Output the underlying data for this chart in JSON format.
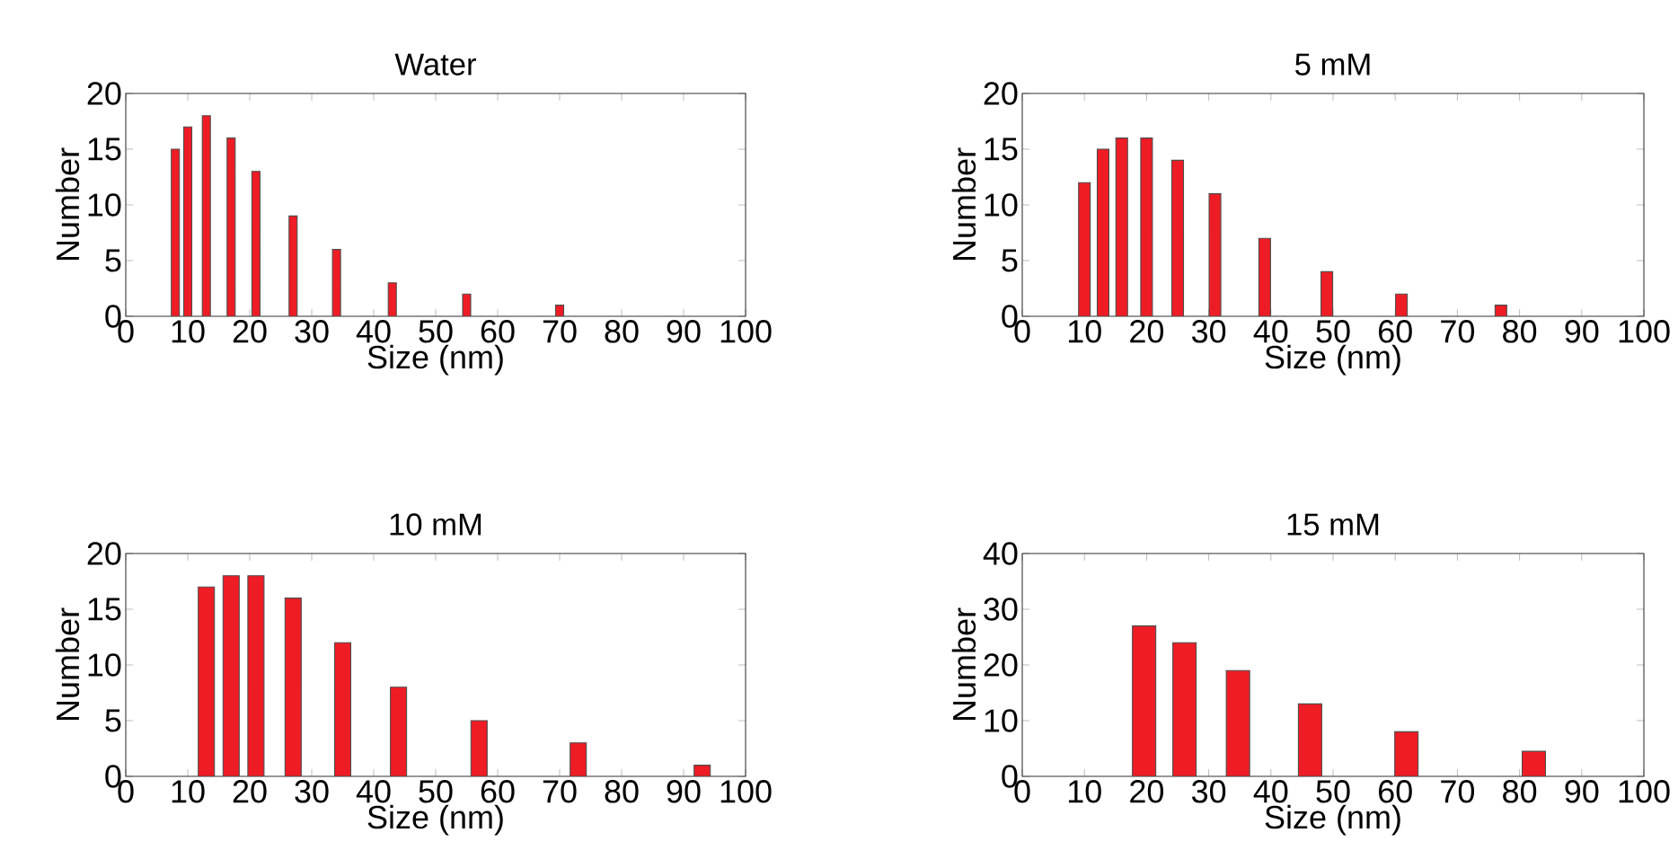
{
  "chart_data": [
    {
      "type": "bar",
      "title": "Water",
      "xlabel": "Size (nm)",
      "ylabel": "Number",
      "color": "#ee1c25",
      "x": [
        8,
        10,
        13,
        17,
        21,
        27,
        34,
        43,
        55,
        70
      ],
      "values": [
        15,
        17,
        18,
        16,
        13,
        9,
        6,
        3,
        2,
        1
      ],
      "xlim": [
        0,
        100
      ],
      "ylim": [
        0,
        20
      ],
      "xticks": [
        0,
        10,
        20,
        30,
        40,
        50,
        60,
        70,
        80,
        90,
        100
      ],
      "yticks": [
        0,
        5,
        10,
        15,
        20
      ],
      "grid": false
    },
    {
      "type": "bar",
      "title": "5 mM",
      "xlabel": "Size (nm)",
      "ylabel": "Number",
      "color": "#ee1c25",
      "x": [
        10,
        13,
        16,
        20,
        25,
        31,
        39,
        49,
        61,
        77
      ],
      "values": [
        12,
        15,
        16,
        16,
        14,
        11,
        7,
        4,
        2,
        1
      ],
      "xlim": [
        0,
        100
      ],
      "ylim": [
        0,
        20
      ],
      "xticks": [
        0,
        10,
        20,
        30,
        40,
        50,
        60,
        70,
        80,
        90,
        100
      ],
      "yticks": [
        0,
        5,
        10,
        15,
        20
      ],
      "grid": false
    },
    {
      "type": "bar",
      "title": "10 mM",
      "xlabel": "Size (nm)",
      "ylabel": "Number",
      "color": "#ee1c25",
      "x": [
        13,
        17,
        21,
        27,
        35,
        44,
        57,
        73,
        93
      ],
      "values": [
        17,
        18,
        18,
        16,
        12,
        8,
        5,
        3,
        1
      ],
      "xlim": [
        0,
        100
      ],
      "ylim": [
        0,
        20
      ],
      "xticks": [
        0,
        10,
        20,
        30,
        40,
        50,
        60,
        70,
        80,
        90,
        100
      ],
      "yticks": [
        0,
        5,
        10,
        15,
        20
      ],
      "grid": false
    },
    {
      "type": "bar",
      "title": "15 mM",
      "xlabel": "Size (nm)",
      "ylabel": "Number",
      "color": "#ee1c25",
      "x": [
        19.6,
        26.1,
        34.7,
        46.3,
        61.8,
        82.3
      ],
      "values": [
        27,
        24,
        19,
        13,
        8,
        4.5
      ],
      "xlim": [
        0,
        100
      ],
      "ylim": [
        0,
        40
      ],
      "xticks": [
        0,
        10,
        20,
        30,
        40,
        50,
        60,
        70,
        80,
        90,
        100
      ],
      "yticks": [
        0,
        10,
        20,
        30,
        40
      ],
      "grid": false
    }
  ]
}
